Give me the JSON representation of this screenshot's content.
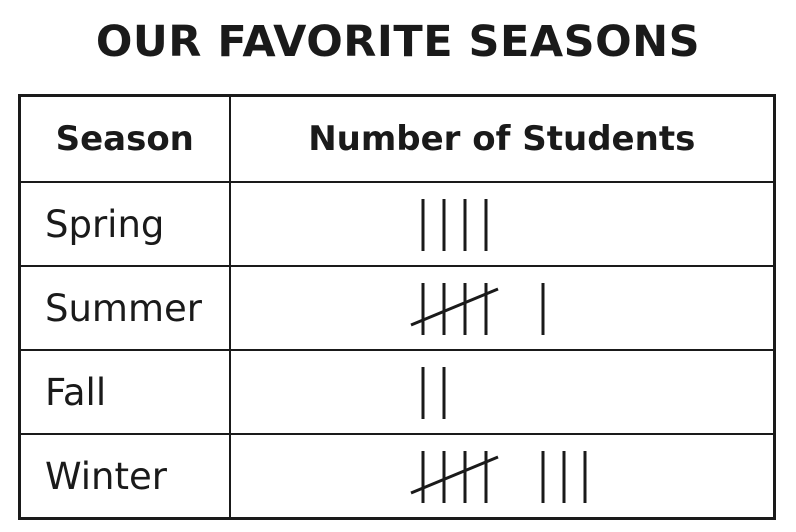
{
  "title": "OUR FAVORITE SEASONS",
  "chart_data": {
    "type": "table",
    "title": "OUR FAVORITE SEASONS",
    "columns": [
      "Season",
      "Number of Students"
    ],
    "rows": [
      {
        "season": "Spring",
        "count": 4
      },
      {
        "season": "Summer",
        "count": 6
      },
      {
        "season": "Fall",
        "count": 2
      },
      {
        "season": "Winter",
        "count": 8
      }
    ],
    "value_display": "tally marks"
  }
}
